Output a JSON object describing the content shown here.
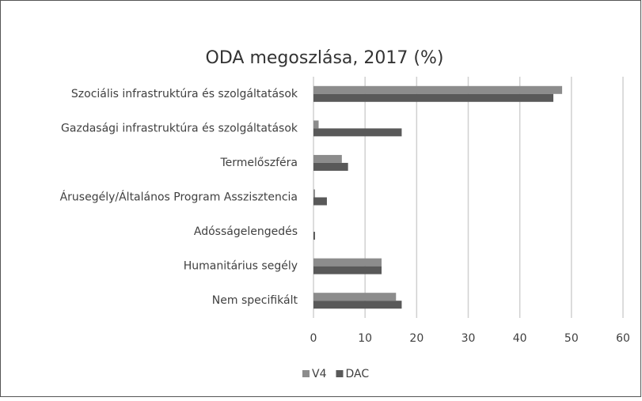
{
  "chart_data": {
    "type": "bar",
    "orientation": "horizontal",
    "title": "ODA megoszlása, 2017 (%)",
    "categories": [
      "Szociális infrastruktúra és szolgáltatások",
      "Gazdasági infrastruktúra és szolgáltatások",
      "Termelőszféra",
      "Árusegély/Általános Program Asszisztencia",
      "Adósságelengedés",
      "Humanitárius segély",
      "Nem specifikált"
    ],
    "series": [
      {
        "name": "V4",
        "color": "#8c8c8c",
        "values": [
          48.2,
          1,
          5.5,
          0.3,
          0,
          13.2,
          16
        ]
      },
      {
        "name": "DAC",
        "color": "#595959",
        "values": [
          46.5,
          17.1,
          6.7,
          2.6,
          0.3,
          13.2,
          17.1
        ]
      }
    ],
    "xlim": [
      0,
      60
    ],
    "xticks": [
      0,
      10,
      20,
      30,
      40,
      50,
      60
    ],
    "grid": true,
    "legend": "bottom"
  }
}
